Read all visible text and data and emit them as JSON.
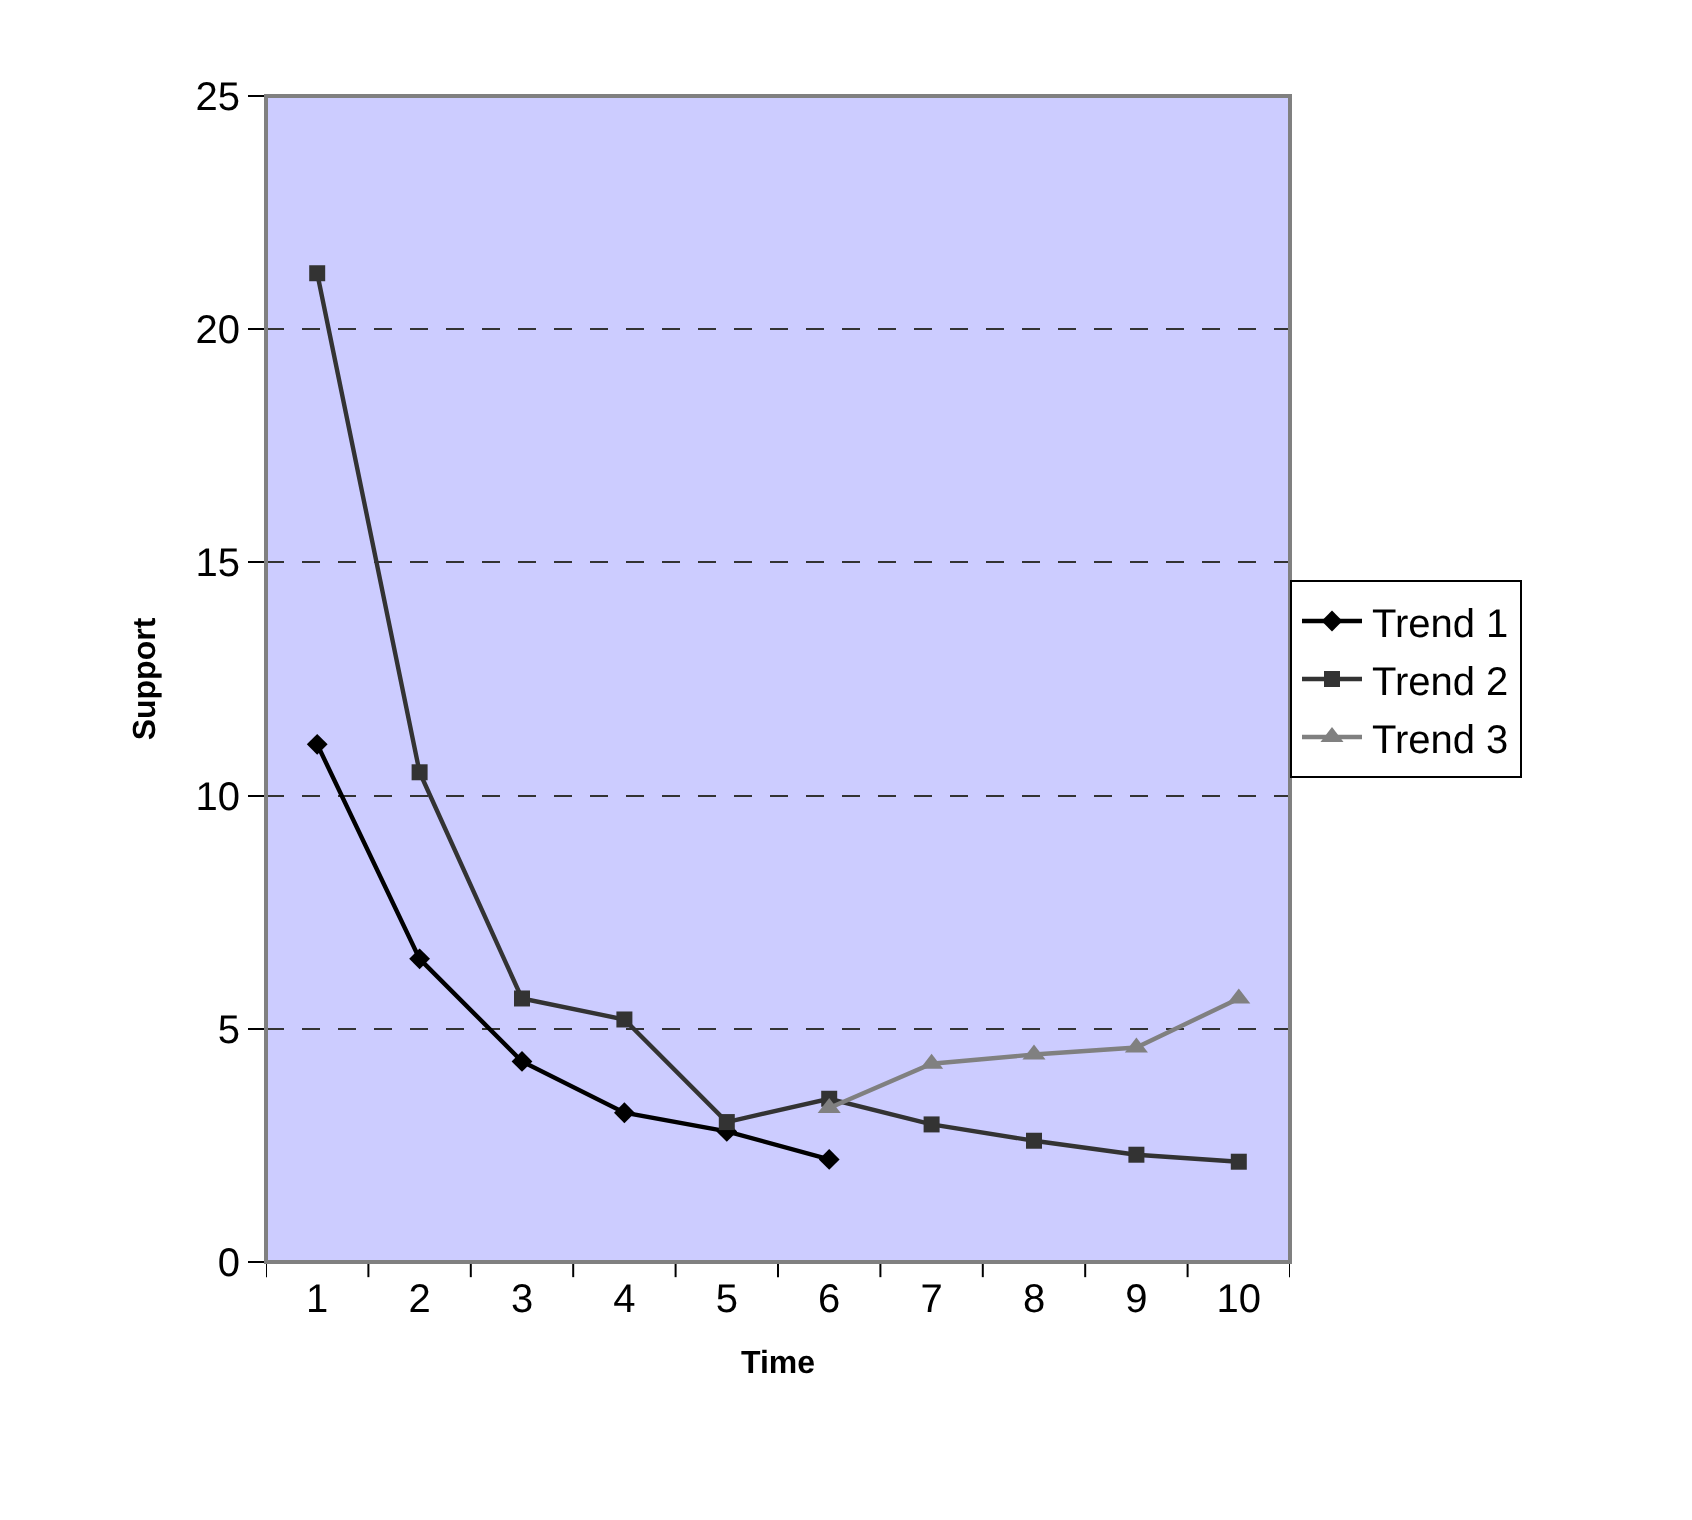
{
  "chart_data": {
    "type": "line",
    "xlabel": "Time",
    "ylabel": "Support",
    "categories": [
      "1",
      "2",
      "3",
      "4",
      "5",
      "6",
      "7",
      "8",
      "9",
      "10"
    ],
    "series": [
      {
        "name": "Trend 1",
        "color": "#000000",
        "marker": "diamond",
        "values": [
          11.1,
          6.5,
          4.3,
          3.2,
          2.8,
          2.2,
          null,
          null,
          null,
          null
        ]
      },
      {
        "name": "Trend 2",
        "color": "#333333",
        "marker": "square",
        "values": [
          21.2,
          10.5,
          5.65,
          5.2,
          3.0,
          3.5,
          2.95,
          2.6,
          2.3,
          2.15
        ]
      },
      {
        "name": "Trend 3",
        "color": "#808080",
        "marker": "triangle",
        "values": [
          null,
          null,
          null,
          null,
          null,
          3.3,
          4.25,
          4.45,
          4.6,
          5.65
        ]
      }
    ],
    "ylim": [
      0,
      25
    ],
    "yticks": [
      0,
      5,
      10,
      15,
      20,
      25
    ],
    "grid": "y",
    "legend": "right"
  }
}
